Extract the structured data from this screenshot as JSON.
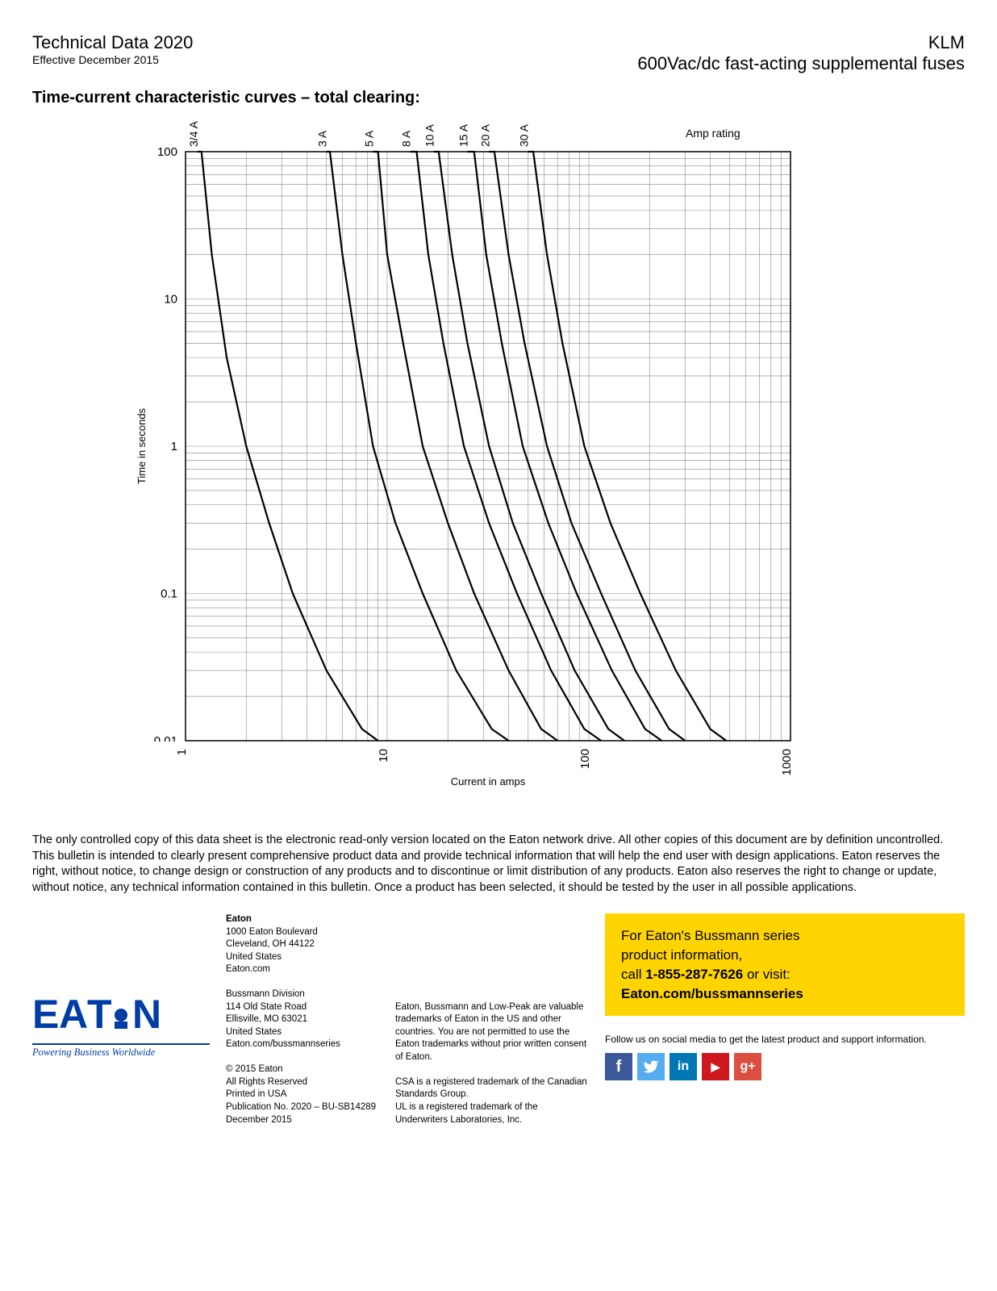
{
  "header": {
    "tech_data": "Technical Data 2020",
    "effective": "Effective December 2015",
    "klm": "KLM",
    "subtitle_right": "600Vac/dc fast-acting supplemental fuses"
  },
  "chart": {
    "title": "Time-current characteristic curves – total clearing:",
    "type": "log-log-line",
    "xlabel": "Current in amps",
    "ylabel": "Time in seconds",
    "series_header": "Amp rating",
    "background_color": "#ffffff",
    "grid_minor_color": "#888888",
    "grid_major_color": "#000000",
    "curve_color": "#000000",
    "curve_width": 2.2,
    "axis_label_fontsize": 14,
    "tick_fontsize": 15,
    "x": {
      "min": 1,
      "max": 1000,
      "log": true,
      "major_ticks": [
        1,
        10,
        100,
        1000
      ]
    },
    "y": {
      "min": 0.01,
      "max": 100,
      "log": true,
      "major_ticks": [
        0.01,
        0.1,
        1,
        10,
        100
      ]
    },
    "curves": [
      {
        "label": "3/4 A",
        "points": [
          [
            1.15,
            200
          ],
          [
            1.2,
            100
          ],
          [
            1.35,
            20
          ],
          [
            1.6,
            4
          ],
          [
            2,
            1
          ],
          [
            2.6,
            0.3
          ],
          [
            3.4,
            0.1
          ],
          [
            5,
            0.03
          ],
          [
            7.5,
            0.012
          ],
          [
            9,
            0.01
          ]
        ]
      },
      {
        "label": "3 A",
        "points": [
          [
            5,
            200
          ],
          [
            5.2,
            100
          ],
          [
            6,
            20
          ],
          [
            7,
            5
          ],
          [
            8.5,
            1
          ],
          [
            11,
            0.3
          ],
          [
            15,
            0.1
          ],
          [
            22,
            0.03
          ],
          [
            33,
            0.012
          ],
          [
            40,
            0.01
          ]
        ]
      },
      {
        "label": "5 A",
        "points": [
          [
            8.5,
            200
          ],
          [
            9,
            100
          ],
          [
            10,
            20
          ],
          [
            12,
            5
          ],
          [
            15,
            1
          ],
          [
            20,
            0.3
          ],
          [
            27,
            0.1
          ],
          [
            40,
            0.03
          ],
          [
            58,
            0.012
          ],
          [
            70,
            0.01
          ]
        ]
      },
      {
        "label": "8 A",
        "points": [
          [
            13,
            200
          ],
          [
            14,
            100
          ],
          [
            16,
            20
          ],
          [
            19,
            5
          ],
          [
            24,
            1
          ],
          [
            32,
            0.3
          ],
          [
            44,
            0.1
          ],
          [
            65,
            0.03
          ],
          [
            95,
            0.012
          ],
          [
            115,
            0.01
          ]
        ]
      },
      {
        "label": "10 A",
        "points": [
          [
            17,
            200
          ],
          [
            18,
            100
          ],
          [
            21,
            20
          ],
          [
            25,
            5
          ],
          [
            32,
            1
          ],
          [
            42,
            0.3
          ],
          [
            58,
            0.1
          ],
          [
            85,
            0.03
          ],
          [
            125,
            0.012
          ],
          [
            150,
            0.01
          ]
        ]
      },
      {
        "label": "15 A",
        "points": [
          [
            25,
            200
          ],
          [
            27,
            100
          ],
          [
            31,
            20
          ],
          [
            37,
            5
          ],
          [
            47,
            1
          ],
          [
            63,
            0.3
          ],
          [
            87,
            0.1
          ],
          [
            130,
            0.03
          ],
          [
            190,
            0.012
          ],
          [
            230,
            0.01
          ]
        ]
      },
      {
        "label": "20 A",
        "points": [
          [
            32,
            200
          ],
          [
            34,
            100
          ],
          [
            40,
            20
          ],
          [
            48,
            5
          ],
          [
            62,
            1
          ],
          [
            82,
            0.3
          ],
          [
            115,
            0.1
          ],
          [
            170,
            0.03
          ],
          [
            250,
            0.012
          ],
          [
            300,
            0.01
          ]
        ]
      },
      {
        "label": "30 A",
        "points": [
          [
            50,
            200
          ],
          [
            53,
            100
          ],
          [
            62,
            20
          ],
          [
            74,
            5
          ],
          [
            95,
            1
          ],
          [
            128,
            0.3
          ],
          [
            180,
            0.1
          ],
          [
            270,
            0.03
          ],
          [
            400,
            0.012
          ],
          [
            480,
            0.01
          ]
        ]
      }
    ]
  },
  "disclaimer": "The only controlled copy of this data sheet is the electronic read-only version located on the Eaton network drive. All other copies of this document are by definition uncontrolled. This bulletin is intended to clearly present comprehensive product data and provide technical information that will help the end user with design applications. Eaton reserves the right, without notice, to change design or construction of any products and to discontinue or limit distribution of any products. Eaton also reserves the right to change or update, without notice, any technical information  contained in this bulletin. Once a product has been selected, it should be tested by the user in all possible applications.",
  "footer": {
    "logo": {
      "name": "EATON",
      "tagline": "Powering Business Worldwide"
    },
    "addr1": {
      "heading": "Eaton",
      "l1": "1000 Eaton Boulevard",
      "l2": "Cleveland, OH 44122",
      "l3": "United States",
      "l4": "Eaton.com"
    },
    "addr2": {
      "heading": "Bussmann Division",
      "l1": "114 Old State Road",
      "l2": "Ellisville, MO 63021",
      "l3": "United States",
      "l4": "Eaton.com/bussmannseries"
    },
    "legal": {
      "l1": "© 2015 Eaton",
      "l2": "All Rights Reserved",
      "l3": "Printed in USA",
      "l4": "Publication No. 2020 – BU-SB14289",
      "l5": "December 2015"
    },
    "tm": {
      "p1": "Eaton, Bussmann and Low-Peak are valuable trademarks of Eaton in the US and other countries. You are not permitted to use the Eaton trademarks without prior written consent of Eaton.",
      "p2": "CSA is a registered trademark of the Canadian Standards Group.",
      "p3": "UL is a registered trademark of the Underwriters Laboratories, Inc."
    },
    "yellow": {
      "l1": "For Eaton's Bussmann series",
      "l2": "product information,",
      "l3a": "call ",
      "phone": "1-855-287-7626",
      "l3b": " or visit:",
      "url": "Eaton.com/bussmannseries"
    },
    "follow": "Follow us on social media to get the latest product and support information.",
    "social": {
      "fb": "f",
      "tw": "t",
      "li": "in",
      "yt": "▶",
      "gp": "g+"
    }
  }
}
